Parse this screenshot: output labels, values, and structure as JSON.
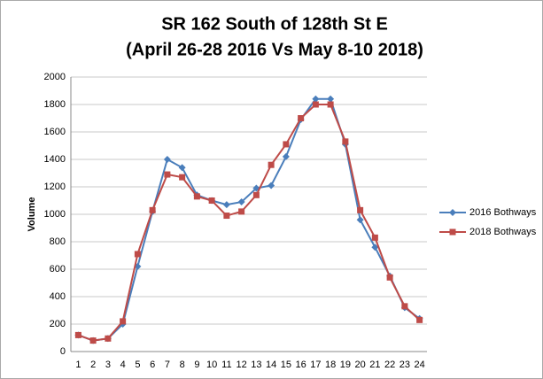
{
  "chart_data": {
    "type": "line",
    "title": "SR 162 South of 128th St E",
    "subtitle": "(April 26-28 2016 Vs May 8-10 2018)",
    "y_label": "Volume",
    "categories": [
      "1",
      "2",
      "3",
      "4",
      "5",
      "6",
      "7",
      "8",
      "9",
      "10",
      "11",
      "12",
      "13",
      "14",
      "15",
      "16",
      "17",
      "18",
      "19",
      "20",
      "21",
      "22",
      "23",
      "24"
    ],
    "series": [
      {
        "name": "2016 Bothways",
        "color": "#4a7ebb",
        "marker": "diamond",
        "values": [
          120,
          80,
          95,
          200,
          620,
          1020,
          1400,
          1340,
          1140,
          1100,
          1070,
          1090,
          1190,
          1210,
          1420,
          1690,
          1840,
          1840,
          1510,
          960,
          760,
          550,
          320,
          240
        ]
      },
      {
        "name": "2018 Bothways",
        "color": "#be4b48",
        "marker": "square",
        "values": [
          120,
          80,
          95,
          220,
          710,
          1030,
          1290,
          1270,
          1130,
          1100,
          990,
          1020,
          1140,
          1360,
          1510,
          1700,
          1800,
          1800,
          1530,
          1030,
          830,
          540,
          330,
          230
        ]
      }
    ],
    "ylim": [
      0,
      2000
    ],
    "yticks": [
      0,
      200,
      400,
      600,
      800,
      1000,
      1200,
      1400,
      1600,
      1800,
      2000
    ],
    "grid": true,
    "legend": "right"
  }
}
